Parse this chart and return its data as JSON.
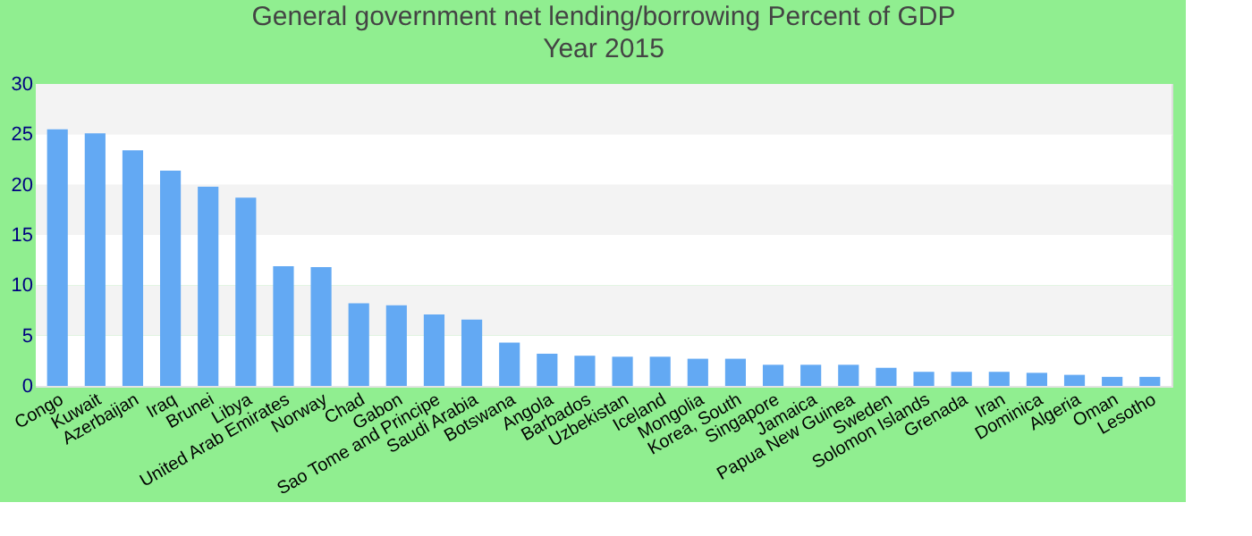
{
  "chart_data": {
    "type": "bar",
    "title": "General government net lending/borrowing  Percent of GDP",
    "subtitle": "Year 2015",
    "categories": [
      "Congo",
      "Kuwait",
      "Azerbaijan",
      "Iraq",
      "Brunei",
      "Libya",
      "United Arab Emirates",
      "Norway",
      "Chad",
      "Gabon",
      "Sao Tome and Principe",
      "Saudi Arabia",
      "Botswana",
      "Angola",
      "Barbados",
      "Uzbekistan",
      "Iceland",
      "Mongolia",
      "Korea, South",
      "Singapore",
      "Jamaica",
      "Papua New Guinea",
      "Sweden",
      "Solomon Islands",
      "Grenada",
      "Iran",
      "Dominica",
      "Algeria",
      "Oman",
      "Lesotho"
    ],
    "values": [
      25.5,
      25.1,
      23.4,
      21.4,
      19.8,
      18.7,
      11.9,
      11.8,
      8.2,
      8.0,
      7.1,
      6.6,
      4.3,
      3.2,
      3.0,
      2.9,
      2.9,
      2.7,
      2.7,
      2.1,
      2.1,
      2.1,
      1.8,
      1.4,
      1.4,
      1.4,
      1.3,
      1.1,
      0.9,
      0.9
    ],
    "color": "#63a9f3",
    "ylim": [
      0,
      30
    ],
    "yticks": [
      0,
      5,
      10,
      15,
      20,
      25,
      30
    ],
    "grid": "y"
  }
}
